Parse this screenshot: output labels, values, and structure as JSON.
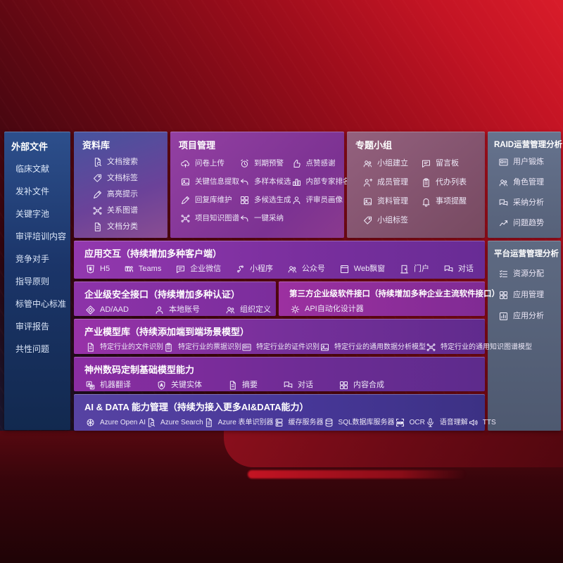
{
  "colors": {
    "backdrop_red": "#c41424",
    "backdrop_dark": "#1f0306",
    "sidebar_blue": "#1b3569",
    "purple_row": "#7a2f9e",
    "blue_row": "#473798",
    "gray_panel": "#566179",
    "rose_panel": "#7f506a"
  },
  "sidebar": {
    "title": "外部文件",
    "items": [
      {
        "label": "临床文献"
      },
      {
        "label": "发补文件"
      },
      {
        "label": "关键字池"
      },
      {
        "label": "审评培训内容"
      },
      {
        "label": "竞争对手"
      },
      {
        "label": "指导原则"
      },
      {
        "label": "标管中心标准"
      },
      {
        "label": "审评报告"
      },
      {
        "label": "共性问题"
      }
    ]
  },
  "panels": {
    "ziliaoku": {
      "title": "资料库",
      "items": [
        {
          "icon": "doc-search-icon",
          "label": "文档搜索"
        },
        {
          "icon": "doc-tag-icon",
          "label": "文档标签"
        },
        {
          "icon": "highlight-pen-icon",
          "label": "高亮提示"
        },
        {
          "icon": "relation-graph-icon",
          "label": "关系图谱"
        },
        {
          "icon": "doc-classify-icon",
          "label": "文档分类"
        }
      ]
    },
    "xiangmu": {
      "title": "项目管理",
      "items": [
        {
          "icon": "cloud-upload-icon",
          "label": "问卷上传"
        },
        {
          "icon": "alarm-icon",
          "label": "到期预警"
        },
        {
          "icon": "thumbs-up-icon",
          "label": "点赞感谢"
        },
        {
          "icon": "key-info-icon",
          "label": "关键信息提取"
        },
        {
          "icon": "multi-sample-icon",
          "label": "多样本候选"
        },
        {
          "icon": "ranking-icon",
          "label": "内部专家排名"
        },
        {
          "icon": "reply-maintain-icon",
          "label": "回复库维护"
        },
        {
          "icon": "multi-generate-icon",
          "label": "多候选生成"
        },
        {
          "icon": "reviewer-profile-icon",
          "label": "评审员画像"
        },
        {
          "icon": "project-graph-icon",
          "label": "项目知识图谱"
        },
        {
          "icon": "one-click-adopt-icon",
          "label": "一键采纳"
        }
      ]
    },
    "zhuanti": {
      "title": "专题小组",
      "items": [
        {
          "icon": "group-create-icon",
          "label": "小组建立"
        },
        {
          "icon": "message-board-icon",
          "label": "留言板"
        },
        {
          "icon": "member-manage-icon",
          "label": "成员管理"
        },
        {
          "icon": "todo-list-icon",
          "label": "代办列表"
        },
        {
          "icon": "material-manage-icon",
          "label": "资料管理"
        },
        {
          "icon": "reminder-icon",
          "label": "事项提醒"
        },
        {
          "icon": "group-tag-icon",
          "label": "小组标签"
        }
      ]
    },
    "raid": {
      "title": "RAID运营管理分析",
      "items": [
        {
          "icon": "user-card-icon",
          "label": "用户锻炼"
        },
        {
          "icon": "role-manage-icon",
          "label": "角色管理"
        },
        {
          "icon": "adopt-analysis-icon",
          "label": "采纳分析"
        },
        {
          "icon": "trend-icon",
          "label": "问题趋势"
        }
      ]
    },
    "pingtai": {
      "title": "平台运营管理分析",
      "items": [
        {
          "icon": "resource-alloc-icon",
          "label": "资源分配"
        },
        {
          "icon": "app-manage-icon",
          "label": "应用管理"
        },
        {
          "icon": "app-analysis-icon",
          "label": "应用分析"
        }
      ]
    },
    "yingyong": {
      "title": "应用交互（持续增加多种客户端）",
      "items": [
        {
          "icon": "h5-icon",
          "label": "H5"
        },
        {
          "icon": "teams-icon",
          "label": "Teams"
        },
        {
          "icon": "wechat-work-icon",
          "label": "企业微信"
        },
        {
          "icon": "miniprogram-icon",
          "label": "小程序"
        },
        {
          "icon": "official-account-icon",
          "label": "公众号"
        },
        {
          "icon": "web-popup-icon",
          "label": "Web飘窗"
        },
        {
          "icon": "portal-icon",
          "label": "门户"
        },
        {
          "icon": "dialog-icon",
          "label": "对话"
        }
      ]
    },
    "anquan": {
      "title": "企业级安全接口（持续增加多种认证）",
      "items": [
        {
          "icon": "ad-aad-icon",
          "label": "AD/AAD"
        },
        {
          "icon": "local-account-icon",
          "label": "本地账号"
        },
        {
          "icon": "org-define-icon",
          "label": "组织定义"
        }
      ]
    },
    "disanfang": {
      "title": "第三方企业级软件接口（持续增加多种企业主流软件接口）",
      "items": [
        {
          "icon": "api-designer-icon",
          "label": "API自动化设计器"
        }
      ]
    },
    "chanye": {
      "title": "产业模型库（持续添加端到端场景模型）",
      "items": [
        {
          "icon": "file-recognition-icon",
          "label": "特定行业的文件识别"
        },
        {
          "icon": "receipt-recognition-icon",
          "label": "特定行业的票据识别"
        },
        {
          "icon": "id-recognition-icon",
          "label": "特定行业的证件识别"
        },
        {
          "icon": "data-analysis-model-icon",
          "label": "特定行业的通用数据分析模型"
        },
        {
          "icon": "knowledge-graph-model-icon",
          "label": "特定行业的通用知识图谱模型"
        }
      ]
    },
    "shenzhou": {
      "title": "神州数码定制基础模型能力",
      "items": [
        {
          "icon": "translate-icon",
          "label": "机器翻译"
        },
        {
          "icon": "key-entity-icon",
          "label": "关键实体"
        },
        {
          "icon": "summary-icon",
          "label": "摘要"
        },
        {
          "icon": "chat-icon",
          "label": "对话"
        },
        {
          "icon": "content-compose-icon",
          "label": "内容合成"
        }
      ]
    },
    "aidata": {
      "title": "AI & DATA 能力管理（持续为接入更多AI&DATA能力）",
      "items": [
        {
          "icon": "openai-icon",
          "label": "Azure Open AI"
        },
        {
          "icon": "azure-search-icon",
          "label": "Azure Search"
        },
        {
          "icon": "form-recognizer-icon",
          "label": "Azure 表单识别器"
        },
        {
          "icon": "cache-server-icon",
          "label": "缓存服务器"
        },
        {
          "icon": "sql-db-icon",
          "label": "SQL数据库服务器"
        },
        {
          "icon": "ocr-icon",
          "label": "OCR"
        },
        {
          "icon": "speech-icon",
          "label": "语音理解"
        },
        {
          "icon": "tts-icon",
          "label": "TTS"
        }
      ]
    }
  }
}
